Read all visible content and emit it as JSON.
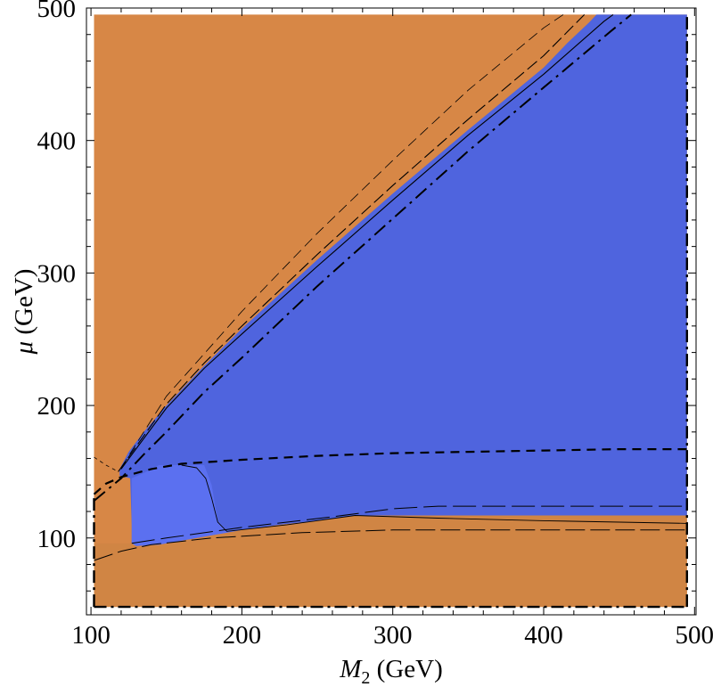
{
  "chart_data": {
    "type": "area",
    "title": "",
    "xlabel": {
      "symbol": "M",
      "sub": "2",
      "unit": " (GeV)"
    },
    "ylabel": {
      "symbol": "μ",
      "unit": " (GeV)"
    },
    "xlim": [
      97,
      501
    ],
    "ylim": [
      42,
      500
    ],
    "x_ticks": [
      100,
      200,
      300,
      400,
      500
    ],
    "y_ticks": [
      100,
      200,
      300,
      400,
      500
    ],
    "grid": false,
    "colors": {
      "background_region": "#d78746",
      "lower_band": "#d08544",
      "excluded_region": "#4f64de",
      "lines": "#000000"
    },
    "regions": [
      {
        "name": "",
        "fill": "#d78746",
        "points": [
          [
            102,
            48
          ],
          [
            495,
            48
          ],
          [
            495,
            495
          ],
          [
            102,
            495
          ]
        ]
      },
      {
        "name": "",
        "fill": "#d08544",
        "points": [
          [
            102,
            48
          ],
          [
            495,
            48
          ],
          [
            495,
            117
          ],
          [
            400,
            117
          ],
          [
            330,
            117
          ],
          [
            275,
            117
          ],
          [
            250,
            113
          ],
          [
            225,
            110
          ],
          [
            200,
            106
          ],
          [
            180,
            102
          ],
          [
            160,
            98
          ],
          [
            145,
            95
          ],
          [
            130,
            94
          ],
          [
            127,
            96
          ],
          [
            102,
            96
          ]
        ]
      },
      {
        "name": "",
        "fill": "#4f64de",
        "points": [
          [
            119,
            152
          ],
          [
            125,
            165
          ],
          [
            135,
            180
          ],
          [
            150,
            200
          ],
          [
            175,
            230
          ],
          [
            200,
            258
          ],
          [
            250,
            310
          ],
          [
            300,
            360
          ],
          [
            350,
            408
          ],
          [
            400,
            455
          ],
          [
            416,
            474
          ],
          [
            430,
            489
          ],
          [
            435,
            495
          ],
          [
            495,
            495
          ],
          [
            495,
            117
          ],
          [
            400,
            117
          ],
          [
            330,
            117
          ],
          [
            275,
            117
          ],
          [
            250,
            113
          ],
          [
            225,
            110
          ],
          [
            200,
            106
          ],
          [
            180,
            102
          ],
          [
            160,
            98
          ],
          [
            145,
            95
          ],
          [
            130,
            94
          ],
          [
            127,
            96
          ],
          [
            127,
            110
          ],
          [
            126,
            145
          ],
          [
            119,
            147
          ]
        ]
      },
      {
        "name": "",
        "fill": "#5b70f0",
        "points": [
          [
            127,
            145
          ],
          [
            135,
            149
          ],
          [
            145,
            155
          ],
          [
            165,
            155
          ],
          [
            175,
            155
          ],
          [
            180,
            140
          ],
          [
            184,
            113
          ],
          [
            190,
            106
          ],
          [
            200,
            106
          ],
          [
            180,
            102
          ],
          [
            160,
            98
          ],
          [
            145,
            95
          ],
          [
            130,
            94
          ],
          [
            127,
            96
          ]
        ]
      }
    ],
    "lines": [
      {
        "name": "",
        "dash": "10,7",
        "width": 2.2,
        "points": [
          [
            102,
            133
          ],
          [
            110,
            141
          ],
          [
            120,
            146
          ],
          [
            140,
            152
          ],
          [
            160,
            156
          ],
          [
            200,
            159
          ],
          [
            250,
            162
          ],
          [
            300,
            164
          ],
          [
            350,
            165
          ],
          [
            400,
            166
          ],
          [
            450,
            167
          ],
          [
            495,
            167
          ]
        ]
      },
      {
        "name": "",
        "dash": "16,6,3,6",
        "width": 2.0,
        "points": [
          [
            102,
            128
          ],
          [
            120,
            145
          ],
          [
            135,
            163
          ],
          [
            150,
            180
          ],
          [
            175,
            210
          ],
          [
            200,
            236
          ],
          [
            250,
            290
          ],
          [
            300,
            341
          ],
          [
            350,
            392
          ],
          [
            400,
            440
          ],
          [
            445,
            483
          ],
          [
            458,
            495
          ]
        ]
      },
      {
        "name": "",
        "dash": "",
        "width": 1.1,
        "points": [
          [
            120,
            152
          ],
          [
            150,
            198
          ],
          [
            175,
            228
          ],
          [
            200,
            254
          ],
          [
            250,
            305
          ],
          [
            300,
            355
          ],
          [
            350,
            404
          ],
          [
            400,
            450
          ],
          [
            440,
            490
          ],
          [
            446,
            495
          ]
        ]
      },
      {
        "name": "",
        "dash": "14,5",
        "width": 1.1,
        "points": [
          [
            118,
            150
          ],
          [
            150,
            201
          ],
          [
            175,
            232
          ],
          [
            200,
            260
          ],
          [
            250,
            314
          ],
          [
            300,
            366
          ],
          [
            350,
            416
          ],
          [
            400,
            464
          ],
          [
            427,
            495
          ]
        ]
      },
      {
        "name": "",
        "dash": "12,6",
        "width": 0.8,
        "points": [
          [
            120,
            153
          ],
          [
            150,
            207
          ],
          [
            200,
            271
          ],
          [
            250,
            330
          ],
          [
            300,
            385
          ],
          [
            350,
            438
          ],
          [
            400,
            485
          ],
          [
            413,
            495
          ]
        ]
      },
      {
        "name": "",
        "dash": "",
        "width": 0.9,
        "points": [
          [
            160,
            155
          ],
          [
            170,
            153
          ],
          [
            176,
            145
          ],
          [
            180,
            130
          ],
          [
            184,
            112
          ],
          [
            190,
            105
          ],
          [
            230,
            110
          ],
          [
            275,
            117
          ],
          [
            330,
            115
          ],
          [
            400,
            113
          ],
          [
            495,
            111
          ]
        ]
      },
      {
        "name": "",
        "dash": "22,6",
        "width": 1.0,
        "points": [
          [
            102,
            83
          ],
          [
            120,
            90
          ],
          [
            140,
            95
          ],
          [
            180,
            100
          ],
          [
            240,
            104
          ],
          [
            300,
            106
          ],
          [
            400,
            106
          ],
          [
            495,
            106
          ]
        ]
      },
      {
        "name": "",
        "dash": "26,7",
        "width": 1.0,
        "points": [
          [
            127,
            96
          ],
          [
            150,
            100
          ],
          [
            200,
            108
          ],
          [
            260,
            116
          ],
          [
            300,
            122
          ],
          [
            330,
            124
          ],
          [
            400,
            124
          ],
          [
            495,
            124
          ]
        ]
      },
      {
        "name": "",
        "dash": "14,5,3,5",
        "width": 2.4,
        "points": [
          [
            102,
            48
          ],
          [
            495,
            48
          ]
        ]
      },
      {
        "name": "",
        "dash": "14,5,3,5",
        "width": 2.4,
        "points": [
          [
            495,
            48
          ],
          [
            495,
            495
          ]
        ]
      },
      {
        "name": "",
        "dash": "14,5,3,5",
        "width": 2.4,
        "points": [
          [
            102,
            48
          ],
          [
            102,
            133
          ]
        ]
      },
      {
        "name": "",
        "dash": "4,4",
        "width": 0.8,
        "points": [
          [
            102,
            161
          ],
          [
            110,
            155
          ],
          [
            118,
            150
          ]
        ]
      }
    ]
  }
}
